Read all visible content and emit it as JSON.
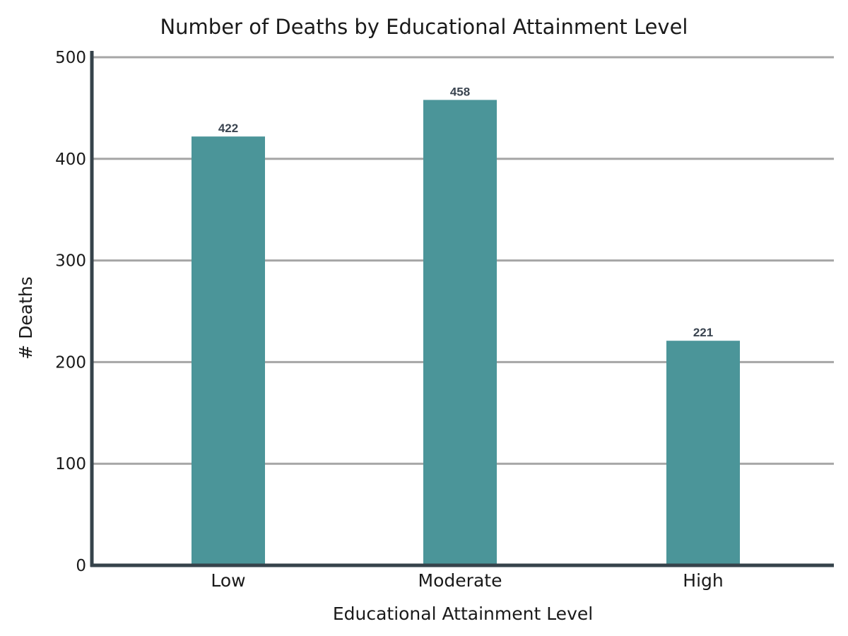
{
  "chart_data": {
    "type": "bar",
    "title": "Number of Deaths by Educational Attainment Level",
    "xlabel": "Educational Attainment Level",
    "ylabel": "# Deaths",
    "categories": [
      "Low",
      "Moderate",
      "High"
    ],
    "values": [
      422,
      458,
      221
    ],
    "data_labels": [
      "422",
      "458",
      "221"
    ],
    "ylim": [
      0,
      500
    ],
    "yticks": [
      0,
      100,
      200,
      300,
      400,
      500
    ],
    "ytick_labels": [
      "0",
      "100",
      "200",
      "300",
      "400",
      "500"
    ],
    "grid": true,
    "bar_color": "#4b9599",
    "axis_color": "#36434b",
    "grid_color": "#a6a6a6"
  }
}
